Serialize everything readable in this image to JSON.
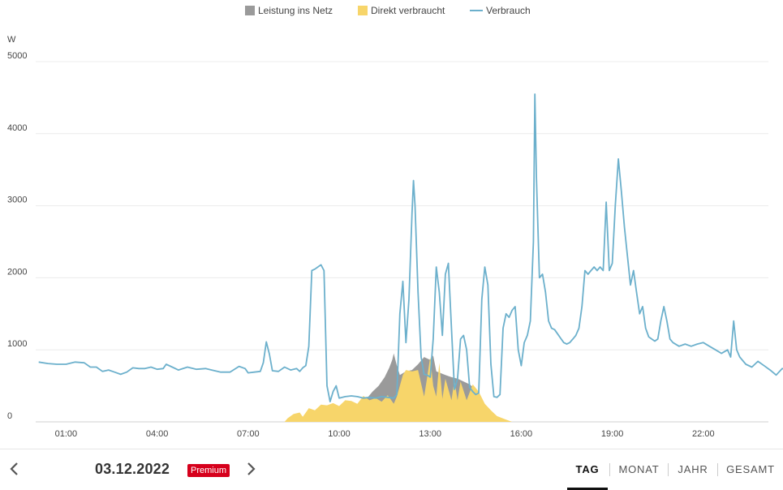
{
  "chart_data": {
    "type": "area",
    "ylabel": "W",
    "ylim": [
      0,
      5000
    ],
    "yticks": [
      "0",
      "1000",
      "2000",
      "3000",
      "4000",
      "5000"
    ],
    "x_range_hours": [
      0,
      24
    ],
    "xticks": [
      {
        "hour": 1,
        "label": "01:00"
      },
      {
        "hour": 4,
        "label": "04:00"
      },
      {
        "hour": 7,
        "label": "07:00"
      },
      {
        "hour": 10,
        "label": "10:00"
      },
      {
        "hour": 13,
        "label": "13:00"
      },
      {
        "hour": 16,
        "label": "16:00"
      },
      {
        "hour": 19,
        "label": "19:00"
      },
      {
        "hour": 22,
        "label": "22:00"
      }
    ],
    "legend_position": "top-center",
    "series": [
      {
        "name": "Leistung ins Netz",
        "kind": "area",
        "color": "#9a9a9a",
        "points": [
          [
            9.6,
            0
          ],
          [
            10.4,
            0
          ],
          [
            10.6,
            150
          ],
          [
            10.9,
            320
          ],
          [
            11.1,
            420
          ],
          [
            11.3,
            500
          ],
          [
            11.5,
            620
          ],
          [
            11.65,
            750
          ],
          [
            11.75,
            860
          ],
          [
            11.8,
            950
          ],
          [
            11.9,
            780
          ],
          [
            12.0,
            650
          ],
          [
            12.2,
            700
          ],
          [
            12.4,
            720
          ],
          [
            12.6,
            800
          ],
          [
            12.8,
            900
          ],
          [
            13.0,
            860
          ],
          [
            13.1,
            920
          ],
          [
            13.2,
            700
          ],
          [
            13.5,
            650
          ],
          [
            13.7,
            620
          ],
          [
            13.9,
            600
          ],
          [
            14.1,
            560
          ],
          [
            14.3,
            520
          ],
          [
            14.5,
            450
          ],
          [
            14.6,
            380
          ],
          [
            14.7,
            0
          ]
        ]
      },
      {
        "name": "Direkt verbraucht",
        "kind": "area",
        "color": "#f7d56a",
        "points": [
          [
            8.2,
            0
          ],
          [
            8.3,
            50
          ],
          [
            8.5,
            110
          ],
          [
            8.7,
            130
          ],
          [
            8.8,
            70
          ],
          [
            8.9,
            130
          ],
          [
            9.0,
            190
          ],
          [
            9.2,
            160
          ],
          [
            9.4,
            240
          ],
          [
            9.6,
            230
          ],
          [
            9.8,
            260
          ],
          [
            10.0,
            220
          ],
          [
            10.2,
            300
          ],
          [
            10.4,
            290
          ],
          [
            10.6,
            250
          ],
          [
            10.8,
            360
          ],
          [
            11.0,
            300
          ],
          [
            11.2,
            330
          ],
          [
            11.4,
            280
          ],
          [
            11.6,
            370
          ],
          [
            11.8,
            250
          ],
          [
            11.9,
            350
          ],
          [
            12.0,
            500
          ],
          [
            12.1,
            650
          ],
          [
            12.2,
            720
          ],
          [
            12.4,
            700
          ],
          [
            12.6,
            720
          ],
          [
            12.8,
            350
          ],
          [
            12.9,
            620
          ],
          [
            13.0,
            900
          ],
          [
            13.1,
            500
          ],
          [
            13.2,
            350
          ],
          [
            13.3,
            820
          ],
          [
            13.4,
            320
          ],
          [
            13.5,
            600
          ],
          [
            13.7,
            300
          ],
          [
            13.8,
            580
          ],
          [
            13.9,
            300
          ],
          [
            14.0,
            560
          ],
          [
            14.2,
            300
          ],
          [
            14.4,
            520
          ],
          [
            14.6,
            420
          ],
          [
            14.8,
            250
          ],
          [
            15.0,
            160
          ],
          [
            15.2,
            80
          ],
          [
            15.5,
            30
          ],
          [
            15.7,
            0
          ]
        ]
      },
      {
        "name": "Verbrauch",
        "kind": "line",
        "color": "#6cb0cc",
        "points": [
          [
            0.1,
            830
          ],
          [
            0.4,
            810
          ],
          [
            0.7,
            800
          ],
          [
            1.0,
            800
          ],
          [
            1.3,
            830
          ],
          [
            1.6,
            820
          ],
          [
            1.8,
            760
          ],
          [
            2.0,
            760
          ],
          [
            2.2,
            700
          ],
          [
            2.4,
            720
          ],
          [
            2.6,
            690
          ],
          [
            2.8,
            660
          ],
          [
            3.0,
            690
          ],
          [
            3.2,
            750
          ],
          [
            3.4,
            740
          ],
          [
            3.6,
            740
          ],
          [
            3.8,
            760
          ],
          [
            4.0,
            730
          ],
          [
            4.2,
            740
          ],
          [
            4.3,
            800
          ],
          [
            4.5,
            760
          ],
          [
            4.7,
            720
          ],
          [
            5.0,
            760
          ],
          [
            5.3,
            730
          ],
          [
            5.6,
            740
          ],
          [
            5.8,
            720
          ],
          [
            6.1,
            690
          ],
          [
            6.4,
            690
          ],
          [
            6.7,
            770
          ],
          [
            6.9,
            740
          ],
          [
            7.0,
            680
          ],
          [
            7.2,
            690
          ],
          [
            7.4,
            700
          ],
          [
            7.5,
            820
          ],
          [
            7.6,
            1110
          ],
          [
            7.7,
            940
          ],
          [
            7.8,
            710
          ],
          [
            8.0,
            700
          ],
          [
            8.2,
            760
          ],
          [
            8.4,
            720
          ],
          [
            8.6,
            740
          ],
          [
            8.7,
            700
          ],
          [
            8.8,
            750
          ],
          [
            8.9,
            780
          ],
          [
            9.0,
            1050
          ],
          [
            9.1,
            2100
          ],
          [
            9.2,
            2120
          ],
          [
            9.4,
            2180
          ],
          [
            9.5,
            2100
          ],
          [
            9.6,
            500
          ],
          [
            9.7,
            280
          ],
          [
            9.8,
            420
          ],
          [
            9.9,
            500
          ],
          [
            10.0,
            330
          ],
          [
            10.2,
            350
          ],
          [
            10.4,
            360
          ],
          [
            10.6,
            350
          ],
          [
            10.8,
            330
          ],
          [
            11.0,
            340
          ],
          [
            11.2,
            330
          ],
          [
            11.4,
            350
          ],
          [
            11.6,
            340
          ],
          [
            11.8,
            330
          ],
          [
            11.9,
            380
          ],
          [
            12.0,
            1500
          ],
          [
            12.1,
            1950
          ],
          [
            12.2,
            1100
          ],
          [
            12.3,
            1700
          ],
          [
            12.4,
            2900
          ],
          [
            12.45,
            3350
          ],
          [
            12.5,
            3000
          ],
          [
            12.6,
            1800
          ],
          [
            12.7,
            900
          ],
          [
            12.8,
            660
          ],
          [
            12.9,
            650
          ],
          [
            13.0,
            620
          ],
          [
            13.1,
            1150
          ],
          [
            13.2,
            2150
          ],
          [
            13.3,
            1800
          ],
          [
            13.4,
            1200
          ],
          [
            13.5,
            2050
          ],
          [
            13.6,
            2200
          ],
          [
            13.7,
            1300
          ],
          [
            13.8,
            450
          ],
          [
            13.9,
            600
          ],
          [
            14.0,
            1150
          ],
          [
            14.1,
            1200
          ],
          [
            14.2,
            1000
          ],
          [
            14.3,
            480
          ],
          [
            14.4,
            420
          ],
          [
            14.5,
            380
          ],
          [
            14.6,
            400
          ],
          [
            14.7,
            1700
          ],
          [
            14.8,
            2150
          ],
          [
            14.9,
            1900
          ],
          [
            15.0,
            800
          ],
          [
            15.1,
            350
          ],
          [
            15.2,
            340
          ],
          [
            15.3,
            380
          ],
          [
            15.4,
            1300
          ],
          [
            15.5,
            1500
          ],
          [
            15.6,
            1450
          ],
          [
            15.7,
            1550
          ],
          [
            15.8,
            1600
          ],
          [
            15.9,
            1000
          ],
          [
            16.0,
            780
          ],
          [
            16.1,
            1100
          ],
          [
            16.2,
            1200
          ],
          [
            16.3,
            1400
          ],
          [
            16.4,
            2500
          ],
          [
            16.45,
            4550
          ],
          [
            16.5,
            3400
          ],
          [
            16.6,
            2000
          ],
          [
            16.7,
            2050
          ],
          [
            16.8,
            1800
          ],
          [
            16.9,
            1400
          ],
          [
            17.0,
            1300
          ],
          [
            17.1,
            1280
          ],
          [
            17.2,
            1220
          ],
          [
            17.3,
            1160
          ],
          [
            17.4,
            1100
          ],
          [
            17.5,
            1080
          ],
          [
            17.6,
            1100
          ],
          [
            17.7,
            1150
          ],
          [
            17.8,
            1200
          ],
          [
            17.9,
            1300
          ],
          [
            18.0,
            1600
          ],
          [
            18.1,
            2100
          ],
          [
            18.2,
            2050
          ],
          [
            18.3,
            2100
          ],
          [
            18.4,
            2150
          ],
          [
            18.5,
            2100
          ],
          [
            18.6,
            2150
          ],
          [
            18.7,
            2100
          ],
          [
            18.8,
            3050
          ],
          [
            18.9,
            2100
          ],
          [
            19.0,
            2200
          ],
          [
            19.1,
            3000
          ],
          [
            19.2,
            3650
          ],
          [
            19.3,
            3200
          ],
          [
            19.4,
            2700
          ],
          [
            19.5,
            2300
          ],
          [
            19.6,
            1900
          ],
          [
            19.7,
            2100
          ],
          [
            19.8,
            1800
          ],
          [
            19.9,
            1500
          ],
          [
            20.0,
            1600
          ],
          [
            20.1,
            1300
          ],
          [
            20.2,
            1180
          ],
          [
            20.3,
            1150
          ],
          [
            20.4,
            1120
          ],
          [
            20.5,
            1150
          ],
          [
            20.6,
            1400
          ],
          [
            20.7,
            1600
          ],
          [
            20.8,
            1400
          ],
          [
            20.9,
            1150
          ],
          [
            21.0,
            1100
          ],
          [
            21.2,
            1050
          ],
          [
            21.4,
            1080
          ],
          [
            21.6,
            1050
          ],
          [
            21.8,
            1080
          ],
          [
            22.0,
            1100
          ],
          [
            22.2,
            1050
          ],
          [
            22.4,
            1000
          ],
          [
            22.6,
            950
          ],
          [
            22.8,
            1000
          ],
          [
            22.9,
            900
          ],
          [
            23.0,
            1400
          ],
          [
            23.1,
            1000
          ],
          [
            23.2,
            900
          ],
          [
            23.3,
            850
          ],
          [
            23.4,
            800
          ],
          [
            23.6,
            760
          ],
          [
            23.8,
            840
          ],
          [
            24.0,
            780
          ],
          [
            24.2,
            720
          ],
          [
            24.4,
            650
          ],
          [
            24.6,
            740
          ],
          [
            24.8,
            720
          ],
          [
            25.0,
            780
          ]
        ]
      }
    ]
  },
  "footer": {
    "date": "03.12.2022",
    "badge": "Premium",
    "prev_icon": "chevron-left-icon",
    "next_icon": "chevron-right-icon",
    "tabs": [
      {
        "label": "TAG",
        "active": true
      },
      {
        "label": "MONAT",
        "active": false
      },
      {
        "label": "JAHR",
        "active": false
      },
      {
        "label": "GESAMT",
        "active": false
      }
    ]
  }
}
